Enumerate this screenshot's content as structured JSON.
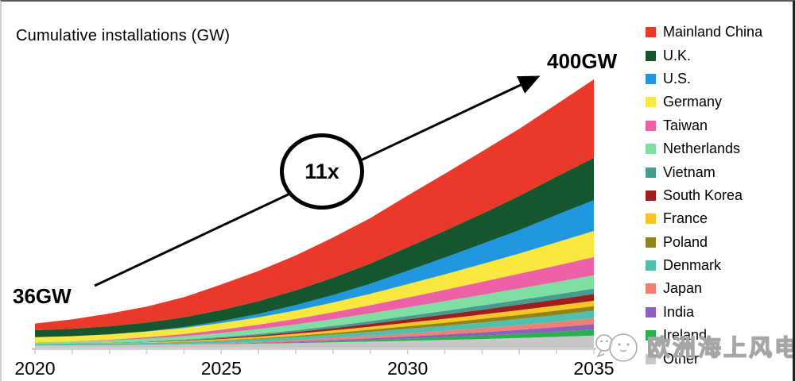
{
  "title": "Cumulative installations (GW)",
  "annotations": {
    "start_label": "36GW",
    "end_label": "400GW",
    "multiplier_label": "11x"
  },
  "watermark": {
    "text": "欧洲海上风电"
  },
  "chart_data": {
    "type": "area",
    "stacked": true,
    "title": "Cumulative installations (GW)",
    "xlabel": "",
    "ylabel": "Cumulative installations (GW)",
    "x": [
      2020,
      2021,
      2022,
      2023,
      2024,
      2025,
      2026,
      2027,
      2028,
      2029,
      2030,
      2031,
      2032,
      2033,
      2034,
      2035
    ],
    "x_ticks": [
      2020,
      2025,
      2030,
      2035
    ],
    "ylim": [
      0,
      400
    ],
    "grid": false,
    "legend_position": "right",
    "start_total_gw": 36,
    "end_total_gw": 400,
    "growth_multiple": "11x",
    "axis_color": "#c9c9c9",
    "series": [
      {
        "name": "Mainland China",
        "color": "#e8392b",
        "values": [
          10,
          14,
          19,
          24,
          30,
          38,
          45,
          52,
          60,
          68,
          77,
          85,
          93,
          100,
          108,
          117
        ]
      },
      {
        "name": "U.K.",
        "color": "#16562f",
        "values": [
          10.4,
          11,
          12,
          13,
          14.5,
          16.5,
          19,
          22,
          26,
          30,
          35,
          40,
          45,
          51,
          57,
          63
        ]
      },
      {
        "name": "U.S.",
        "color": "#2097e0",
        "values": [
          0.04,
          0.04,
          0.1,
          0.5,
          1.5,
          3,
          5,
          8,
          11,
          15,
          20,
          25,
          30,
          35,
          41,
          46
        ]
      },
      {
        "name": "Germany",
        "color": "#f8e840",
        "values": [
          7.7,
          7.7,
          8,
          8.3,
          9,
          10,
          11,
          12.5,
          14.5,
          17,
          20,
          23,
          26.5,
          30,
          34.5,
          39
        ]
      },
      {
        "name": "Taiwan",
        "color": "#ec61a6",
        "values": [
          0.1,
          0.2,
          1,
          2,
          3.2,
          4.8,
          6.5,
          8.3,
          10.2,
          12.2,
          14.5,
          17,
          19.5,
          22,
          24.5,
          27
        ]
      },
      {
        "name": "Netherlands",
        "color": "#7fdfa2",
        "values": [
          2.6,
          3,
          3.5,
          4.3,
          5.2,
          6.3,
          7.5,
          8.8,
          10.2,
          11.6,
          13,
          14.4,
          15.8,
          17.2,
          18.6,
          20
        ]
      },
      {
        "name": "Vietnam",
        "color": "#459d90",
        "values": [
          0.1,
          0.2,
          0.4,
          0.7,
          1,
          1.5,
          2,
          2.6,
          3.3,
          4,
          4.8,
          5.6,
          6.3,
          6.9,
          7.5,
          8
        ]
      },
      {
        "name": "South Korea",
        "color": "#9e1d20",
        "values": [
          0.1,
          0.15,
          0.2,
          0.4,
          0.7,
          1.2,
          1.8,
          2.5,
          3.3,
          4.2,
          5.2,
          6.2,
          7.2,
          8.2,
          9.1,
          10
        ]
      },
      {
        "name": "France",
        "color": "#f8c622",
        "values": [
          0,
          0,
          0.5,
          1,
          1.5,
          2,
          2.6,
          3.2,
          3.9,
          4.6,
          5.3,
          5.9,
          6.5,
          7.1,
          7.6,
          8
        ]
      },
      {
        "name": "Poland",
        "color": "#90831a",
        "values": [
          0,
          0,
          0,
          0,
          0.2,
          0.6,
          1.1,
          1.7,
          2.4,
          3.1,
          3.9,
          4.6,
          5.3,
          5.9,
          6.5,
          7
        ]
      },
      {
        "name": "Denmark",
        "color": "#4fc0ae",
        "values": [
          1.7,
          2.3,
          2.3,
          2.6,
          3,
          3.4,
          3.9,
          4.5,
          5.2,
          6,
          6.8,
          7.6,
          8.4,
          9.3,
          10.1,
          11
        ]
      },
      {
        "name": "Japan",
        "color": "#f08076",
        "values": [
          0.06,
          0.1,
          0.2,
          0.4,
          0.7,
          1.1,
          1.6,
          2.2,
          2.9,
          3.7,
          4.5,
          5.3,
          6.2,
          7.1,
          8,
          9
        ]
      },
      {
        "name": "India",
        "color": "#8f5fc0",
        "values": [
          0,
          0,
          0,
          0,
          0.1,
          0.3,
          0.7,
          1.2,
          1.8,
          2.5,
          3.3,
          4.1,
          5,
          5.9,
          6.9,
          8
        ]
      },
      {
        "name": "Ireland",
        "color": "#27b24b",
        "values": [
          0.03,
          0.03,
          0.03,
          0.05,
          0.1,
          0.3,
          0.6,
          1.1,
          1.7,
          2.4,
          3.2,
          4.1,
          5.1,
          6.3,
          7.6,
          9
        ]
      },
      {
        "name": "Other",
        "color": "#c7c7c7",
        "values": [
          3.2,
          3.4,
          3.7,
          4.1,
          4.6,
          5.2,
          6,
          6.9,
          7.9,
          9,
          10.2,
          11.5,
          12.9,
          14.4,
          16.1,
          18
        ]
      }
    ]
  }
}
